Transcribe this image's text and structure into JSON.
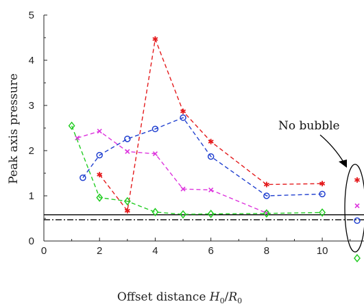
{
  "chart_data": {
    "type": "line",
    "xlabel": "Offset distance H0/R0",
    "ylabel": "Peak axis pressure",
    "xlim": [
      0,
      11.5
    ],
    "ylim": [
      0,
      5
    ],
    "x_ticks": [
      "0",
      "2",
      "4",
      "6",
      "8",
      "10"
    ],
    "y_ticks": [
      "0",
      "1",
      "2",
      "3",
      "4",
      "5"
    ],
    "grid": false,
    "line_style": "dashed",
    "series": [
      {
        "marker": "asterisk",
        "color": "#e41a1c",
        "x": [
          2,
          3,
          4,
          5,
          6,
          8,
          10
        ],
        "y": [
          1.47,
          0.67,
          4.47,
          2.87,
          2.2,
          1.25,
          1.27
        ],
        "no_bubble_value": 1.35
      },
      {
        "marker": "cross",
        "color": "#dd33dd",
        "x": [
          1.2,
          2,
          3,
          4,
          5,
          6,
          8
        ],
        "y": [
          2.28,
          2.43,
          1.98,
          1.93,
          1.15,
          1.13,
          0.62
        ],
        "no_bubble_value": 0.78
      },
      {
        "marker": "circle",
        "color": "#1f3fcf",
        "x": [
          1.4,
          2,
          3,
          4,
          5,
          6,
          8,
          10
        ],
        "y": [
          1.4,
          1.9,
          2.26,
          2.48,
          2.73,
          1.87,
          1.0,
          1.04
        ],
        "no_bubble_value": 0.45
      },
      {
        "marker": "diamond",
        "color": "#22cc22",
        "x": [
          1,
          2,
          3,
          4,
          5,
          6,
          8,
          10
        ],
        "y": [
          2.55,
          0.96,
          0.88,
          0.64,
          0.59,
          0.6,
          0.61,
          0.63
        ],
        "no_bubble_value": -0.38
      }
    ],
    "reference_lines": [
      {
        "style": "solid",
        "y": 0.58
      },
      {
        "style": "dash-dot",
        "y": 0.47
      }
    ],
    "annotation": {
      "text": "No bubble",
      "x": 12.2,
      "y": 0.6
    }
  }
}
